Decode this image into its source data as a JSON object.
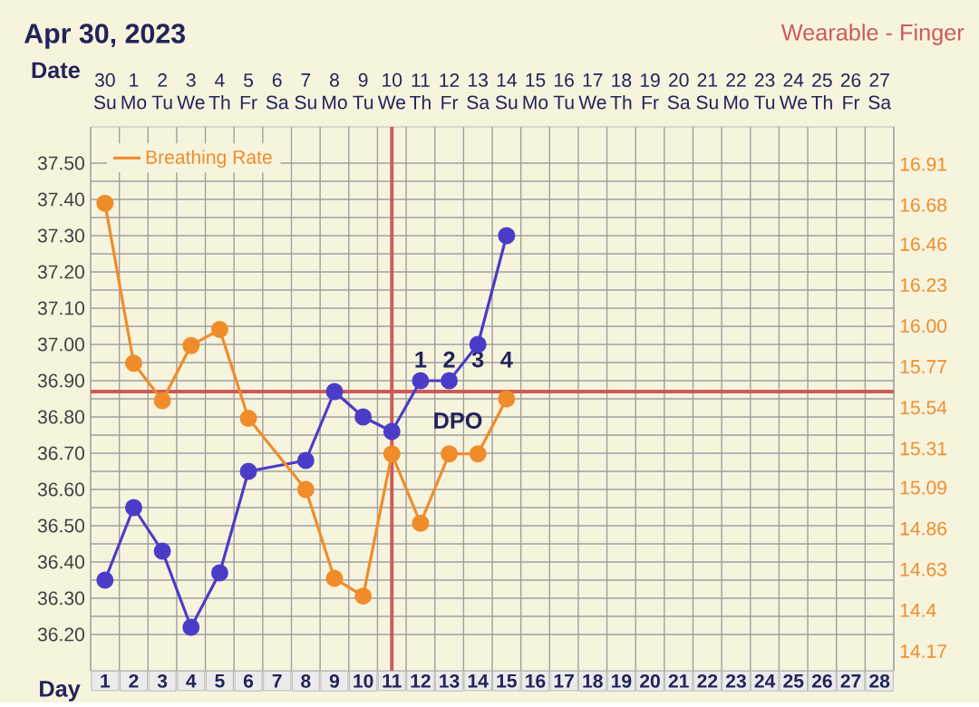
{
  "chart_data": {
    "type": "line",
    "title": "Apr 30, 2023",
    "xlabel": "Day",
    "categories": [
      "1",
      "2",
      "3",
      "4",
      "5",
      "6",
      "7",
      "8",
      "9",
      "10",
      "11",
      "12",
      "13",
      "14",
      "15",
      "16",
      "17",
      "18",
      "19",
      "20",
      "21",
      "22",
      "23",
      "24",
      "25",
      "26",
      "27",
      "28"
    ],
    "series": [
      {
        "color": "#4b3cc8",
        "values": [
          36.35,
          36.55,
          36.43,
          36.22,
          36.37,
          36.65,
          null,
          36.68,
          36.87,
          36.8,
          36.76,
          36.9,
          36.9,
          37.0,
          37.3,
          null,
          null,
          null,
          null,
          null,
          null,
          null,
          null,
          null,
          null,
          null,
          null,
          null
        ]
      },
      {
        "name": "Breathing Rate",
        "color": "#f08c2a",
        "axis": "y2",
        "values": [
          16.69,
          15.79,
          15.58,
          15.89,
          15.98,
          15.48,
          null,
          15.08,
          14.58,
          14.48,
          15.28,
          14.89,
          15.28,
          15.28,
          15.59,
          null,
          null,
          null,
          null,
          null,
          null,
          null,
          null,
          null,
          null,
          null,
          null,
          null
        ]
      }
    ],
    "ylim": [
      36.1,
      37.6
    ],
    "yticks": [
      {
        "value": 36.2,
        "label": "36.20"
      },
      {
        "value": 36.3,
        "label": "36.30"
      },
      {
        "value": 36.4,
        "label": "36.40"
      },
      {
        "value": 36.5,
        "label": "36.50"
      },
      {
        "value": 36.6,
        "label": "36.60"
      },
      {
        "value": 36.7,
        "label": "36.70"
      },
      {
        "value": 36.8,
        "label": "36.80"
      },
      {
        "value": 36.9,
        "label": "36.90"
      },
      {
        "value": 37.0,
        "label": "37.00"
      },
      {
        "value": 37.1,
        "label": "37.10"
      },
      {
        "value": 37.2,
        "label": "37.20"
      },
      {
        "value": 37.3,
        "label": "37.30"
      },
      {
        "value": 37.4,
        "label": "37.40"
      },
      {
        "value": 37.5,
        "label": "37.50"
      }
    ],
    "y2lim": [
      14.06,
      17.12
    ],
    "y2ticks": [
      14.17,
      14.4,
      14.63,
      14.86,
      15.09,
      15.31,
      15.54,
      15.77,
      {
        "value": 16.0,
        "label": "16.00"
      },
      16.23,
      16.46,
      16.68,
      16.91
    ],
    "ref_lines": [
      {
        "axis": "x",
        "value": "11",
        "color": "#cc5a5a"
      },
      {
        "axis": "y",
        "value": 36.87,
        "color": "#cc5a5a"
      }
    ],
    "annotations": [
      "Wearable - Finger",
      "Date",
      "30 Su",
      "1 Mo",
      "2 Tu",
      "3 We",
      "4 Th",
      "5 Fr",
      "6 Sa",
      "7 Su",
      "8 Mo",
      "9 Tu",
      "10 We",
      "11 Th",
      "12 Fr",
      "13 Sa",
      "14 Su",
      "15 Mo",
      "16 Tu",
      "17 We",
      "18 Th",
      "19 Fr",
      "20 Sa",
      "21 Su",
      "22 Mo",
      "23 Tu",
      "24 We",
      "25 Th",
      "26 Fr",
      "27 Sa",
      "1",
      "2",
      "3",
      "4",
      "DPO"
    ],
    "grid": true,
    "legend": "top left",
    "marker": "circle",
    "line_style": "solid"
  }
}
